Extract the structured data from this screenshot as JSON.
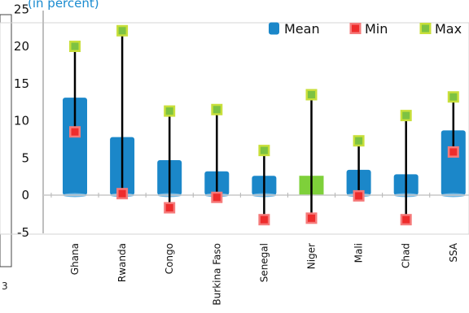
{
  "chart_data": {
    "type": "bar",
    "title": "",
    "subtitle": "(in percent)",
    "xlabel": "",
    "ylabel": "",
    "ylim": [
      -5,
      25
    ],
    "yticks": [
      -5,
      0,
      5,
      10,
      15,
      20,
      25
    ],
    "grid": false,
    "legend_position": "top-right",
    "categories": [
      "Ghana",
      "Rwanda",
      "Congo",
      "Burkina Faso",
      "Senegal",
      "Niger",
      "Mali",
      "Chad",
      "SSA"
    ],
    "series": [
      {
        "name": "Mean",
        "kind": "bar",
        "color": "#1b87c9",
        "values": [
          13.1,
          7.8,
          4.7,
          3.2,
          2.6,
          2.6,
          3.4,
          2.8,
          8.7
        ]
      },
      {
        "name": "Min",
        "kind": "marker",
        "color": "#ee2c2c",
        "values": [
          8.5,
          0.2,
          -1.7,
          -0.3,
          -3.3,
          -3.1,
          -0.1,
          -3.3,
          5.8
        ]
      },
      {
        "name": "Max",
        "kind": "marker",
        "color": "#7dc242",
        "values": [
          20.0,
          22.1,
          11.3,
          11.5,
          6.0,
          13.5,
          7.3,
          10.7,
          13.2
        ]
      }
    ],
    "highlight": {
      "category": "Niger",
      "color": "#7ed03a"
    },
    "corner_label": "3"
  }
}
